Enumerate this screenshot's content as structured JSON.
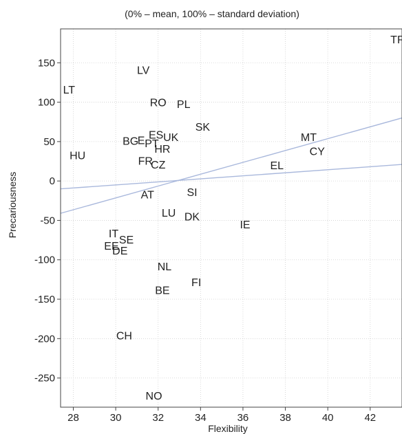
{
  "chart_data": {
    "type": "scatter",
    "subtitle": "(0% – mean, 100% – standard deviation)",
    "xlabel": "Flexibility",
    "ylabel": "Precariousness",
    "xlim": [
      27.4,
      43.5
    ],
    "ylim": [
      -287,
      193
    ],
    "x_ticks": [
      28,
      30,
      32,
      34,
      36,
      38,
      40,
      42
    ],
    "y_ticks": [
      150,
      100,
      50,
      0,
      -50,
      -100,
      -150,
      -200,
      -250
    ],
    "grid": true,
    "points": [
      {
        "label": "TR",
        "x": 43.3,
        "y": 180
      },
      {
        "label": "LV",
        "x": 31.3,
        "y": 141
      },
      {
        "label": "LT",
        "x": 27.8,
        "y": 116
      },
      {
        "label": "RO",
        "x": 32.0,
        "y": 100
      },
      {
        "label": "PL",
        "x": 33.2,
        "y": 98
      },
      {
        "label": "SK",
        "x": 34.1,
        "y": 69
      },
      {
        "label": "MT",
        "x": 39.1,
        "y": 56
      },
      {
        "label": "ES",
        "x": 31.9,
        "y": 59
      },
      {
        "label": "UK",
        "x": 32.6,
        "y": 56
      },
      {
        "label": "BG",
        "x": 30.7,
        "y": 51
      },
      {
        "label": "E",
        "x": 31.2,
        "y": 52
      },
      {
        "label": "PT",
        "x": 31.7,
        "y": 48
      },
      {
        "label": "HR",
        "x": 32.2,
        "y": 41
      },
      {
        "label": "HU",
        "x": 28.2,
        "y": 33
      },
      {
        "label": "CY",
        "x": 39.5,
        "y": 38
      },
      {
        "label": "FR",
        "x": 31.4,
        "y": 26
      },
      {
        "label": "CZ",
        "x": 32.0,
        "y": 21
      },
      {
        "label": "EL",
        "x": 37.6,
        "y": 20
      },
      {
        "label": "AT",
        "x": 31.5,
        "y": -17
      },
      {
        "label": "SI",
        "x": 33.6,
        "y": -14
      },
      {
        "label": "LU",
        "x": 32.5,
        "y": -40
      },
      {
        "label": "DK",
        "x": 33.6,
        "y": -45
      },
      {
        "label": "IE",
        "x": 36.1,
        "y": -55
      },
      {
        "label": "IT",
        "x": 29.9,
        "y": -66
      },
      {
        "label": "SE",
        "x": 30.5,
        "y": -74
      },
      {
        "label": "EE",
        "x": 29.8,
        "y": -82
      },
      {
        "label": "DE",
        "x": 30.2,
        "y": -88
      },
      {
        "label": "NL",
        "x": 32.3,
        "y": -108
      },
      {
        "label": "FI",
        "x": 33.8,
        "y": -128
      },
      {
        "label": "BE",
        "x": 32.2,
        "y": -138
      },
      {
        "label": "CH",
        "x": 30.4,
        "y": -196
      },
      {
        "label": "NO",
        "x": 31.8,
        "y": -272
      }
    ],
    "trend_lines": [
      {
        "x": [
          27.4,
          43.5
        ],
        "y": [
          -41,
          80
        ]
      },
      {
        "x": [
          27.4,
          43.5
        ],
        "y": [
          -10,
          21
        ]
      }
    ]
  }
}
